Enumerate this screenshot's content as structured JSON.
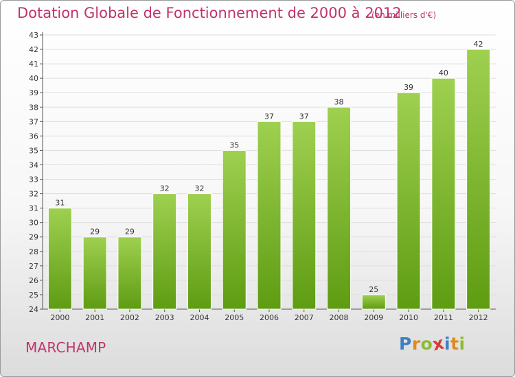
{
  "header": {
    "title": "Dotation Globale de Fonctionnement de 2000 à 2012",
    "subtitle": "(en milliers d'€)"
  },
  "footer": {
    "commune": "MARCHAMP",
    "logo_text": "Proxiti"
  },
  "colors": {
    "accent": "#c0336b",
    "bar_top": "#9fd050",
    "bar_bottom": "#5e9c12",
    "grid": "#dddddd"
  },
  "chart_data": {
    "type": "bar",
    "title": "Dotation Globale de Fonctionnement de 2000 à 2012",
    "subtitle": "(en milliers d'€)",
    "xlabel": "",
    "ylabel": "",
    "categories": [
      "2000",
      "2001",
      "2002",
      "2003",
      "2004",
      "2005",
      "2006",
      "2007",
      "2008",
      "2009",
      "2010",
      "2011",
      "2012"
    ],
    "values": [
      31,
      29,
      29,
      32,
      32,
      35,
      37,
      37,
      38,
      25,
      39,
      40,
      42
    ],
    "ylim": [
      24,
      43
    ],
    "yticks": [
      24,
      25,
      26,
      27,
      28,
      29,
      30,
      31,
      32,
      33,
      34,
      35,
      36,
      37,
      38,
      39,
      40,
      41,
      42,
      43
    ],
    "grid": true,
    "data_labels": true
  }
}
